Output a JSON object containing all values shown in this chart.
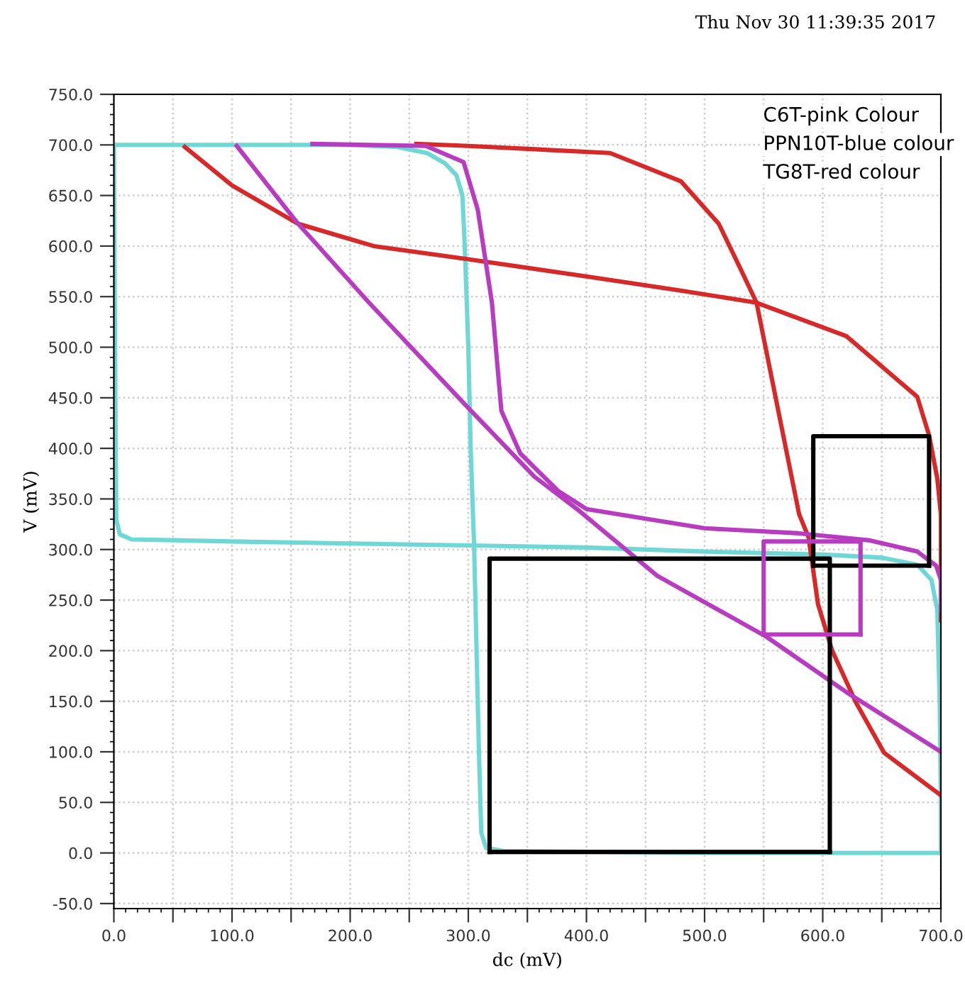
{
  "chart_data": {
    "type": "line",
    "xlabel": "dc (mV)",
    "ylabel": "V (mV)",
    "annotations": [
      "Thu Nov 30 11:39:35 2017",
      "C6T-pink Colour",
      "PPN10T-blue colour",
      "TG8T-red colour"
    ],
    "xlim": [
      0,
      700
    ],
    "ylim": [
      -55,
      750
    ],
    "xticks": [
      {
        "value": 0,
        "label": "0.0"
      },
      {
        "value": 50,
        "label": null
      },
      {
        "value": 100,
        "label": "100.0"
      },
      {
        "value": 150,
        "label": null
      },
      {
        "value": 200,
        "label": "200.0"
      },
      {
        "value": 250,
        "label": null
      },
      {
        "value": 300,
        "label": "300.0"
      },
      {
        "value": 350,
        "label": null
      },
      {
        "value": 400,
        "label": "400.0"
      },
      {
        "value": 450,
        "label": null
      },
      {
        "value": 500,
        "label": "500.0"
      },
      {
        "value": 550,
        "label": null
      },
      {
        "value": 600,
        "label": "600.0"
      },
      {
        "value": 650,
        "label": null
      },
      {
        "value": 700,
        "label": "700.0"
      }
    ],
    "yticks": [
      {
        "value": -50,
        "label": "-50.0"
      },
      {
        "value": 0,
        "label": "0.0"
      },
      {
        "value": 50,
        "label": "50.0"
      },
      {
        "value": 100,
        "label": "100.0"
      },
      {
        "value": 150,
        "label": "150.0"
      },
      {
        "value": 200,
        "label": "200.0"
      },
      {
        "value": 250,
        "label": "250.0"
      },
      {
        "value": 300,
        "label": "300.0"
      },
      {
        "value": 350,
        "label": "350.0"
      },
      {
        "value": 400,
        "label": "400.0"
      },
      {
        "value": 450,
        "label": "450.0"
      },
      {
        "value": 500,
        "label": "500.0"
      },
      {
        "value": 550,
        "label": "550.0"
      },
      {
        "value": 600,
        "label": "600.0"
      },
      {
        "value": 650,
        "label": "650.0"
      },
      {
        "value": 700,
        "label": "700.0"
      },
      {
        "value": 750,
        "label": "750.0"
      }
    ],
    "grid": true,
    "marker": "none",
    "line_style": "solid",
    "series": [
      {
        "type": "line",
        "color": "#6fd8d6",
        "x": [
          0,
          200,
          240,
          265,
          280,
          290,
          295,
          297,
          300,
          302,
          305,
          307,
          309,
          311,
          315,
          330,
          500,
          700
        ],
        "values": [
          700,
          700,
          698,
          692,
          682,
          670,
          650,
          600,
          500,
          400,
          300,
          200,
          100,
          20,
          5,
          2,
          0,
          0
        ]
      },
      {
        "type": "line",
        "color": "#6fd8d6",
        "x": [
          0,
          1,
          2,
          5,
          15,
          100,
          200,
          300,
          400,
          500,
          600,
          650,
          680,
          692,
          697,
          699,
          700,
          700
        ],
        "values": [
          700,
          500,
          330,
          315,
          310,
          308,
          306,
          304,
          302,
          298,
          295,
          292,
          285,
          270,
          240,
          150,
          50,
          0
        ]
      },
      {
        "type": "line",
        "color": "#d62a2a",
        "x": [
          60,
          100,
          156,
          220,
          300,
          400,
          480,
          544,
          620,
          680,
          690,
          697,
          700,
          700
        ],
        "values": [
          698,
          660,
          622,
          600,
          587,
          570,
          556,
          544,
          511,
          451,
          413,
          370,
          335,
          230
        ]
      },
      {
        "type": "line",
        "color": "#d62a2a",
        "x": [
          256,
          300,
          420,
          480,
          512,
          531,
          544,
          560,
          580,
          588,
          596,
          608,
          628,
          652,
          700
        ],
        "values": [
          701,
          699,
          692,
          664,
          622,
          576,
          544,
          451,
          335,
          312,
          246,
          200,
          149,
          99,
          57
        ]
      },
      {
        "type": "line",
        "color": "#b83cc0",
        "x": [
          104,
          156,
          216,
          300,
          356,
          392,
          460,
          552,
          620,
          700
        ],
        "values": [
          699,
          622,
          544,
          440,
          372,
          340,
          274,
          214,
          159,
          100
        ]
      },
      {
        "type": "line",
        "color": "#b83cc0",
        "x": [
          168,
          264,
          296,
          308,
          320,
          328,
          344,
          376,
          400,
          500,
          580,
          640,
          680,
          696,
          700,
          700
        ],
        "values": [
          701,
          699,
          683,
          636,
          544,
          437,
          395,
          358,
          340,
          321,
          316,
          309,
          298,
          284,
          270,
          240
        ]
      },
      {
        "color": "#000000",
        "x": [
          318,
          318,
          606,
          606
        ],
        "values": [
          1,
          291,
          291,
          1
        ]
      },
      {
        "color": "#000000",
        "x": [
          318,
          606
        ],
        "values": [
          1,
          1
        ]
      },
      {
        "color": "#000000",
        "x": [
          592,
          592,
          690,
          690
        ],
        "values": [
          284,
          412,
          412,
          284
        ]
      },
      {
        "color": "#000000",
        "x": [
          592,
          690
        ],
        "values": [
          284,
          284
        ]
      },
      {
        "color": "#b83cc0",
        "x": [
          550,
          550,
          632,
          632
        ],
        "values": [
          216,
          308,
          308,
          216
        ]
      },
      {
        "color": "#b83cc0",
        "x": [
          550,
          632
        ],
        "values": [
          216,
          216
        ]
      }
    ]
  }
}
